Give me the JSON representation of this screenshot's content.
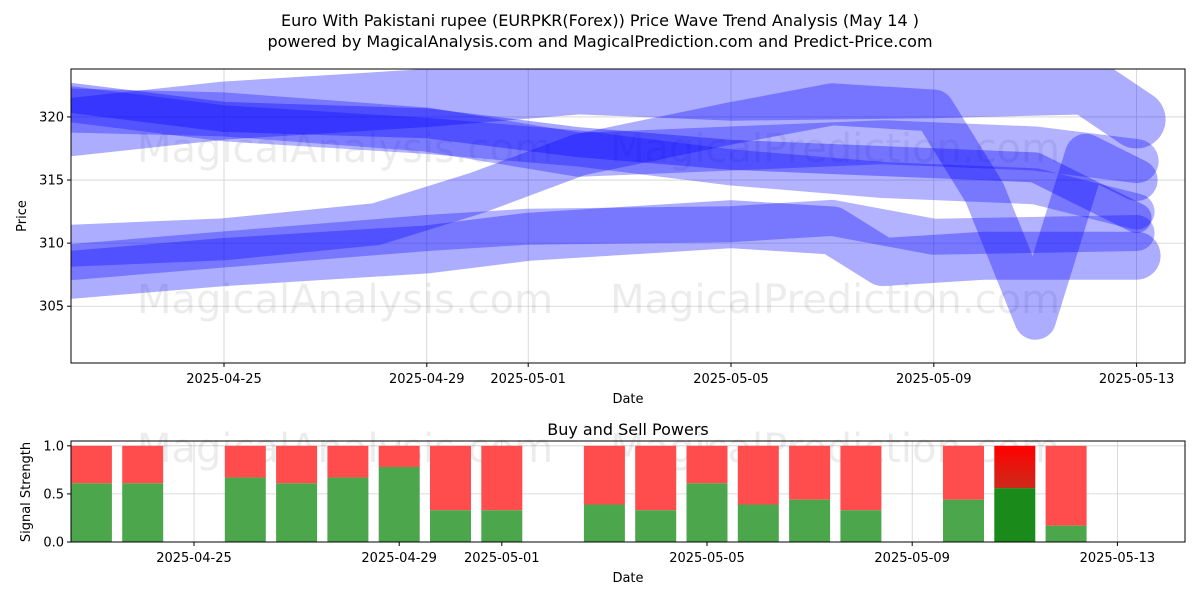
{
  "title_line1": "Euro With Pakistani rupee (EURPKR(Forex)) Price Wave Trend Analysis (May 14 )",
  "title_line2": "powered by MagicalAnalysis.com and MagicalPrediction.com and Predict-Price.com",
  "watermarks": [
    "MagicalAnalysis.com",
    "MagicalPrediction.com"
  ],
  "chart_data": [
    {
      "type": "line",
      "title": "",
      "xlabel": "Date",
      "ylabel": "Price",
      "ylim": [
        300.5,
        323.8
      ],
      "yticks": [
        305,
        310,
        315,
        320
      ],
      "xticks": [
        "2025-04-25",
        "2025-04-29",
        "2025-05-01",
        "2025-05-05",
        "2025-05-09",
        "2025-05-13"
      ],
      "grid": true,
      "band_color": "#0000ff",
      "series": [
        {
          "points": [
            [
              "2025-04-22",
              319.2
            ],
            [
              "2025-04-25",
              320.5
            ],
            [
              "2025-04-29",
              321.5
            ],
            [
              "2025-05-02",
              322.5
            ],
            [
              "2025-05-05",
              322.0
            ],
            [
              "2025-05-09",
              322.2
            ],
            [
              "2025-05-12",
              322.5
            ],
            [
              "2025-05-13",
              319.8
            ]
          ]
        },
        {
          "points": [
            [
              "2025-04-22",
              321.5
            ],
            [
              "2025-04-25",
              320.0
            ],
            [
              "2025-04-29",
              319.5
            ],
            [
              "2025-05-02",
              318.0
            ],
            [
              "2025-05-05",
              317.0
            ],
            [
              "2025-05-08",
              316.5
            ],
            [
              "2025-05-11",
              316.0
            ],
            [
              "2025-05-13",
              312.0
            ]
          ]
        },
        {
          "points": [
            [
              "2025-04-22",
              321.0
            ],
            [
              "2025-04-25",
              319.5
            ],
            [
              "2025-04-29",
              318.5
            ],
            [
              "2025-05-02",
              317.5
            ],
            [
              "2025-05-05",
              316.0
            ],
            [
              "2025-05-08",
              315.0
            ],
            [
              "2025-05-11",
              314.5
            ],
            [
              "2025-05-13",
              312.5
            ]
          ]
        },
        {
          "points": [
            [
              "2025-04-22",
              320.5
            ],
            [
              "2025-04-25",
              320.2
            ],
            [
              "2025-04-29",
              319.0
            ],
            [
              "2025-05-02",
              317.0
            ],
            [
              "2025-05-05",
              317.5
            ],
            [
              "2025-05-08",
              318.0
            ],
            [
              "2025-05-11",
              317.5
            ],
            [
              "2025-05-13",
              316.5
            ]
          ]
        },
        {
          "points": [
            [
              "2025-04-22",
              309.8
            ],
            [
              "2025-04-25",
              310.3
            ],
            [
              "2025-04-28",
              311.5
            ],
            [
              "2025-04-30",
              314.0
            ],
            [
              "2025-05-02",
              317.0
            ],
            [
              "2025-05-05",
              319.5
            ],
            [
              "2025-05-07",
              321.0
            ],
            [
              "2025-05-09",
              320.5
            ],
            [
              "2025-05-10",
              314.0
            ],
            [
              "2025-05-11",
              304.0
            ],
            [
              "2025-05-12",
              317.0
            ],
            [
              "2025-05-13",
              315.0
            ]
          ]
        },
        {
          "points": [
            [
              "2025-04-22",
              307.5
            ],
            [
              "2025-04-25",
              308.5
            ],
            [
              "2025-04-29",
              309.5
            ],
            [
              "2025-05-01",
              310.5
            ],
            [
              "2025-05-05",
              311.5
            ],
            [
              "2025-05-07",
              311.0
            ],
            [
              "2025-05-08",
              308.5
            ],
            [
              "2025-05-10",
              309.0
            ],
            [
              "2025-05-13",
              309.0
            ]
          ]
        },
        {
          "points": [
            [
              "2025-04-22",
              308.5
            ],
            [
              "2025-04-25",
              309.5
            ],
            [
              "2025-04-29",
              310.8
            ],
            [
              "2025-05-01",
              311.3
            ],
            [
              "2025-05-05",
              311.5
            ],
            [
              "2025-05-07",
              312.0
            ],
            [
              "2025-05-09",
              310.5
            ],
            [
              "2025-05-13",
              310.8
            ]
          ]
        }
      ]
    },
    {
      "type": "bar",
      "title": "Buy and Sell Powers",
      "xlabel": "Date",
      "ylabel": "Signal Strength",
      "ylim": [
        0,
        1.05
      ],
      "yticks": [
        0.0,
        0.5,
        1.0
      ],
      "xticks": [
        "2025-04-25",
        "2025-04-29",
        "2025-05-01",
        "2025-05-05",
        "2025-05-09",
        "2025-05-13"
      ],
      "grid": true,
      "buy_color": "#4ca64c",
      "sell_color": "#ff4d4d",
      "highlight_buy_color": "#1a8a1a",
      "highlight_sell_color": "#ff0000",
      "categories": [
        "2025-04-23",
        "2025-04-24",
        "2025-04-26",
        "2025-04-27",
        "2025-04-28",
        "2025-04-29",
        "2025-04-30",
        "2025-05-01",
        "2025-05-03",
        "2025-05-04",
        "2025-05-05",
        "2025-05-06",
        "2025-05-07",
        "2025-05-08",
        "2025-05-10",
        "2025-05-11",
        "2025-05-12"
      ],
      "buy": [
        0.61,
        0.61,
        0.67,
        0.61,
        0.67,
        0.78,
        0.33,
        0.33,
        0.39,
        0.33,
        0.61,
        0.39,
        0.44,
        0.33,
        0.44,
        0.56,
        0.17
      ],
      "highlight_index": 15
    }
  ]
}
